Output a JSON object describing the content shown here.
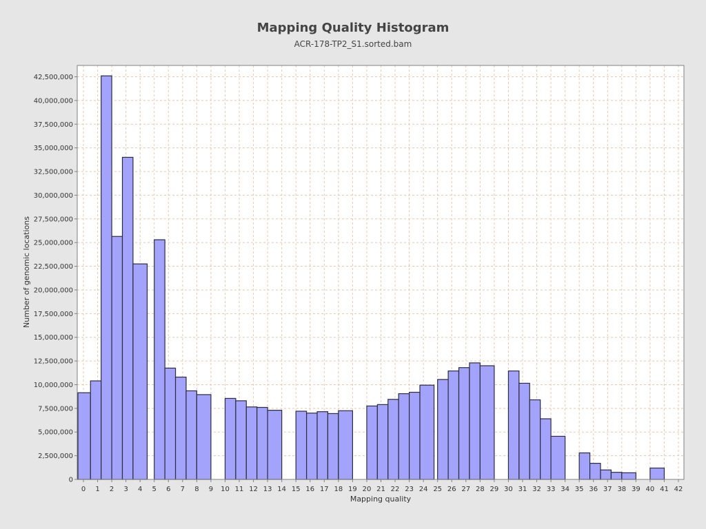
{
  "chart_data": {
    "type": "bar",
    "title": "Mapping Quality Histogram",
    "subtitle": "ACR-178-TP2_S1.sorted.bam",
    "xlabel": "Mapping quality",
    "ylabel": "Number of genomic locations",
    "xlim": [
      0,
      42
    ],
    "ylim": [
      0,
      43700000
    ],
    "grid": true,
    "legend": "none",
    "y_ticks": [
      0,
      2500000,
      5000000,
      7500000,
      10000000,
      12500000,
      15000000,
      17500000,
      20000000,
      22500000,
      25000000,
      27500000,
      30000000,
      32500000,
      35000000,
      37500000,
      40000000,
      42500000
    ],
    "y_tick_labels": [
      "0",
      "2,500,000",
      "5,000,000",
      "7,500,000",
      "10,000,000",
      "12,500,000",
      "15,000,000",
      "17,500,000",
      "20,000,000",
      "22,500,000",
      "25,000,000",
      "27,500,000",
      "30,000,000",
      "32,500,000",
      "35,000,000",
      "37,500,000",
      "40,000,000",
      "42,500,000"
    ],
    "x_ticks": [
      0,
      1,
      2,
      3,
      4,
      5,
      6,
      7,
      8,
      9,
      10,
      11,
      12,
      13,
      14,
      15,
      16,
      17,
      18,
      19,
      20,
      21,
      22,
      23,
      24,
      25,
      26,
      27,
      28,
      29,
      30,
      31,
      32,
      33,
      34,
      35,
      36,
      37,
      38,
      39,
      40,
      41,
      42
    ],
    "bars": [
      {
        "x": 0.0,
        "y": 9150000
      },
      {
        "x": 0.5,
        "y": 10400000
      },
      {
        "x": 1.25,
        "y": 42600000
      },
      {
        "x": 2.0,
        "y": 25650000
      },
      {
        "x": 2.75,
        "y": 34000000
      },
      {
        "x": 3.5,
        "y": 22750000
      },
      {
        "x": 5.0,
        "y": 25300000
      },
      {
        "x": 5.75,
        "y": 11750000
      },
      {
        "x": 6.5,
        "y": 10800000
      },
      {
        "x": 7.25,
        "y": 9350000
      },
      {
        "x": 8.0,
        "y": 8950000
      },
      {
        "x": 10.0,
        "y": 8550000
      },
      {
        "x": 10.75,
        "y": 8300000
      },
      {
        "x": 11.5,
        "y": 7650000
      },
      {
        "x": 12.25,
        "y": 7600000
      },
      {
        "x": 13.0,
        "y": 7300000
      },
      {
        "x": 15.0,
        "y": 7200000
      },
      {
        "x": 15.75,
        "y": 7000000
      },
      {
        "x": 16.5,
        "y": 7150000
      },
      {
        "x": 17.25,
        "y": 6950000
      },
      {
        "x": 18.0,
        "y": 7250000
      },
      {
        "x": 20.0,
        "y": 7750000
      },
      {
        "x": 20.75,
        "y": 7900000
      },
      {
        "x": 21.5,
        "y": 8450000
      },
      {
        "x": 22.25,
        "y": 9050000
      },
      {
        "x": 23.0,
        "y": 9200000
      },
      {
        "x": 23.75,
        "y": 9950000
      },
      {
        "x": 25.0,
        "y": 10550000
      },
      {
        "x": 25.75,
        "y": 11450000
      },
      {
        "x": 26.5,
        "y": 11800000
      },
      {
        "x": 27.25,
        "y": 12300000
      },
      {
        "x": 28.0,
        "y": 12000000
      },
      {
        "x": 30.0,
        "y": 11450000
      },
      {
        "x": 30.75,
        "y": 10150000
      },
      {
        "x": 31.5,
        "y": 8400000
      },
      {
        "x": 32.25,
        "y": 6400000
      },
      {
        "x": 33.0,
        "y": 4550000
      },
      {
        "x": 35.0,
        "y": 2800000
      },
      {
        "x": 35.75,
        "y": 1700000
      },
      {
        "x": 36.5,
        "y": 1000000
      },
      {
        "x": 37.25,
        "y": 750000
      },
      {
        "x": 38.0,
        "y": 700000
      },
      {
        "x": 40.0,
        "y": 1200000
      }
    ],
    "colors": {
      "bar_fill": "#a3a3fb",
      "bar_stroke": "#2b2b40",
      "grid": "#e8c8b0",
      "plot_bg": "#ffffff",
      "page_bg": "#e6e6e6"
    }
  }
}
